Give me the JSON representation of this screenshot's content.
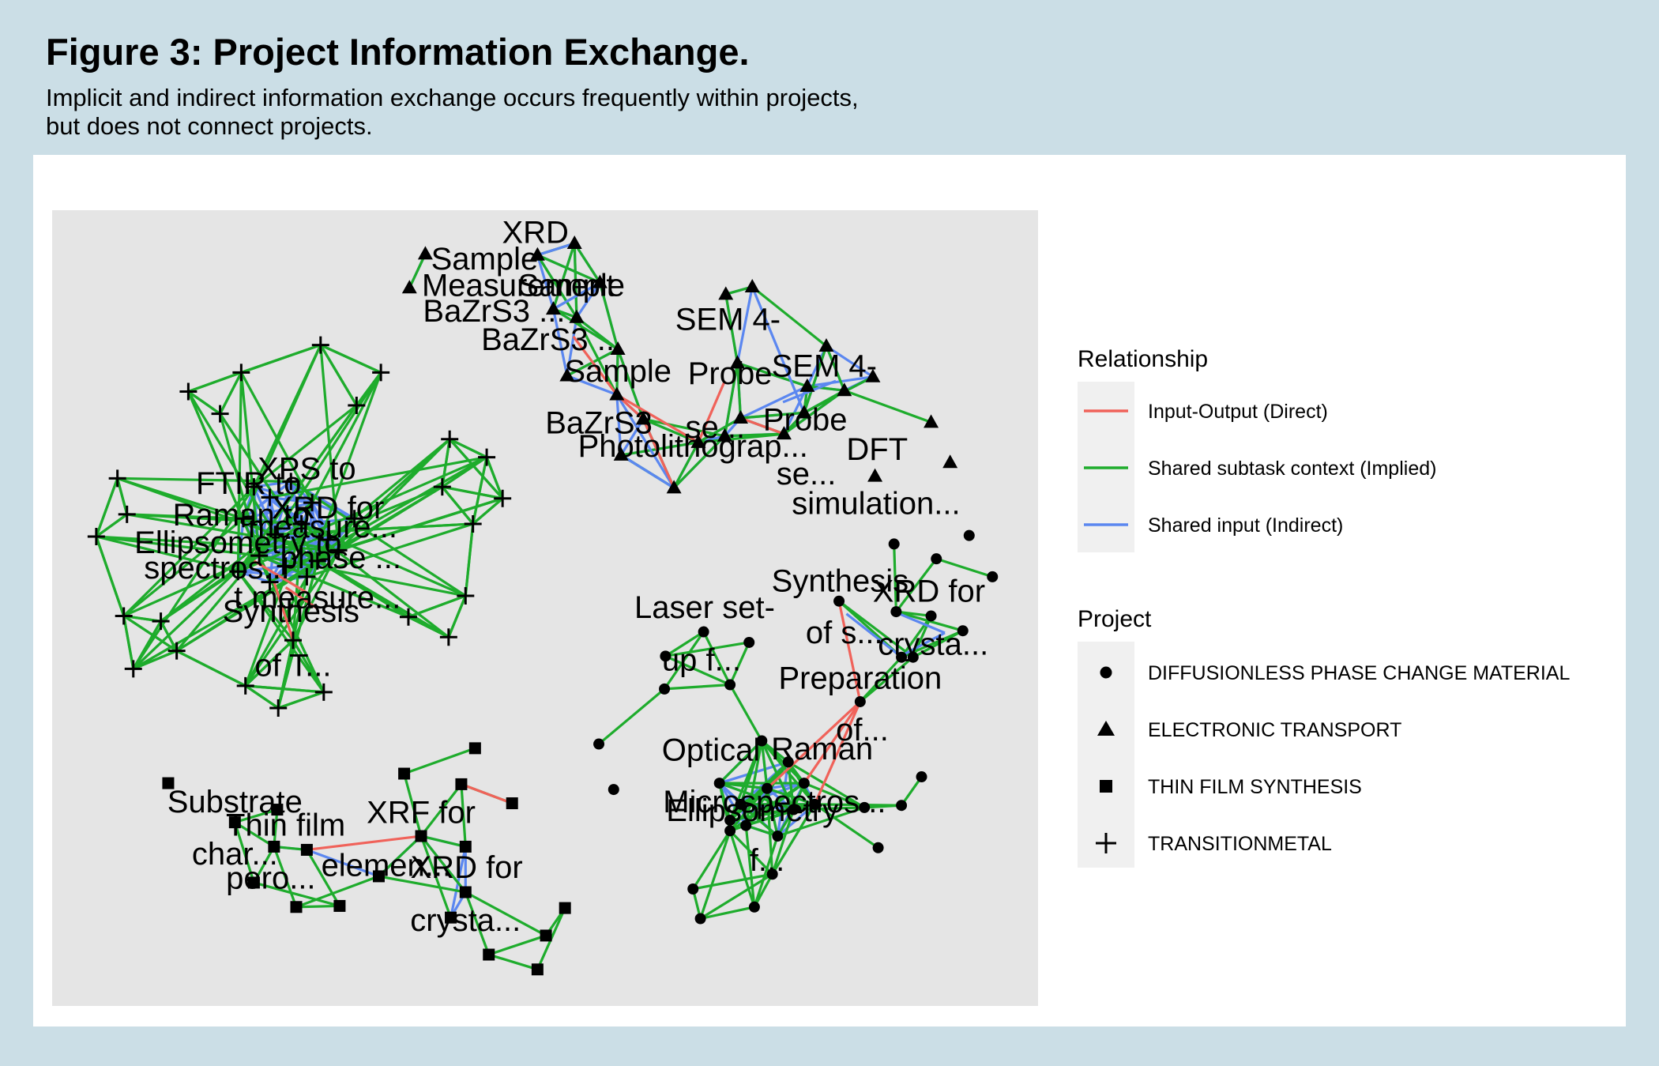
{
  "figure": {
    "title": "Figure 3: Project Information Exchange.",
    "subtitle_lines": [
      "Implicit and indirect information exchange occurs frequently within projects,",
      "but does not connect projects."
    ]
  },
  "colors": {
    "page_background": "#cbdee6",
    "plot_background": "#e5e5e5",
    "legend_key_background": "#f0f0f0",
    "input_output": "#f0625a",
    "shared_subtask": "#1eac2c",
    "shared_input": "#5b87f0",
    "nodes": "#000000"
  },
  "legend": {
    "relationship": {
      "title": "Relationship",
      "items": [
        {
          "key": "io",
          "label": "Input-Output (Direct)"
        },
        {
          "key": "ctx",
          "label": "Shared subtask context (Implied)"
        },
        {
          "key": "inp",
          "label": "Shared input (Indirect)"
        }
      ]
    },
    "project": {
      "title": "Project",
      "items": [
        {
          "shape": "circle",
          "label": "DIFFUSIONLESS PHASE CHANGE MATERIAL"
        },
        {
          "shape": "triangle",
          "label": "ELECTRONIC TRANSPORT"
        },
        {
          "shape": "square",
          "label": "THIN FILM SYNTHESIS"
        },
        {
          "shape": "plus",
          "label": "TRANSITIONMETAL"
        }
      ]
    }
  },
  "network": {
    "node_labels": [
      {
        "text": "XPS to",
        "project": "plus"
      },
      {
        "text": "FTIR to",
        "project": "plus"
      },
      {
        "text": "XRD for",
        "project": "plus"
      },
      {
        "text": "Raman to",
        "project": "plus"
      },
      {
        "text": "measure...",
        "project": "plus"
      },
      {
        "text": "Ellipsometry to",
        "project": "plus"
      },
      {
        "text": "phase ...",
        "project": "plus"
      },
      {
        "text": "spectros...",
        "project": "plus"
      },
      {
        "text": "t measure...",
        "project": "plus"
      },
      {
        "text": "Synthesis",
        "project": "plus"
      },
      {
        "text": "of T...",
        "project": "plus"
      },
      {
        "text": "XRD",
        "project": "triangle"
      },
      {
        "text": "Sample",
        "project": "triangle"
      },
      {
        "text": "Measurement",
        "project": "triangle"
      },
      {
        "text": "Sample",
        "project": "triangle"
      },
      {
        "text": "BaZrS3 ...",
        "project": "triangle"
      },
      {
        "text": "BaZrS3 ...",
        "project": "triangle"
      },
      {
        "text": "Sample",
        "project": "triangle"
      },
      {
        "text": "SEM 4-",
        "project": "triangle"
      },
      {
        "text": "Probe",
        "project": "triangle"
      },
      {
        "text": "SEM 4-",
        "project": "triangle"
      },
      {
        "text": "BaZrS3",
        "project": "triangle"
      },
      {
        "text": "se...",
        "project": "triangle"
      },
      {
        "text": "Probe",
        "project": "triangle"
      },
      {
        "text": "Photolithograp...",
        "project": "triangle"
      },
      {
        "text": "se...",
        "project": "triangle"
      },
      {
        "text": "DFT",
        "project": "triangle"
      },
      {
        "text": "simulation...",
        "project": "triangle"
      },
      {
        "text": "Synthesis",
        "project": "circle"
      },
      {
        "text": "XRD for",
        "project": "circle"
      },
      {
        "text": "Laser set-",
        "project": "circle"
      },
      {
        "text": "of s...",
        "project": "circle"
      },
      {
        "text": "crysta...",
        "project": "circle"
      },
      {
        "text": "up f...",
        "project": "circle"
      },
      {
        "text": "Preparation",
        "project": "circle"
      },
      {
        "text": "of...",
        "project": "circle"
      },
      {
        "text": "Optical",
        "project": "circle"
      },
      {
        "text": "Raman",
        "project": "circle"
      },
      {
        "text": "Microspectros...",
        "project": "circle"
      },
      {
        "text": "Ellipsometry",
        "project": "circle"
      },
      {
        "text": "f...",
        "project": "circle"
      },
      {
        "text": "Substrate",
        "project": "square"
      },
      {
        "text": "Thin film",
        "project": "square"
      },
      {
        "text": "XRF for",
        "project": "square"
      },
      {
        "text": "char...",
        "project": "square"
      },
      {
        "text": "elemen...",
        "project": "square"
      },
      {
        "text": "XRD for",
        "project": "square"
      },
      {
        "text": "pero...",
        "project": "square"
      },
      {
        "text": "crysta...",
        "project": "square"
      }
    ]
  }
}
